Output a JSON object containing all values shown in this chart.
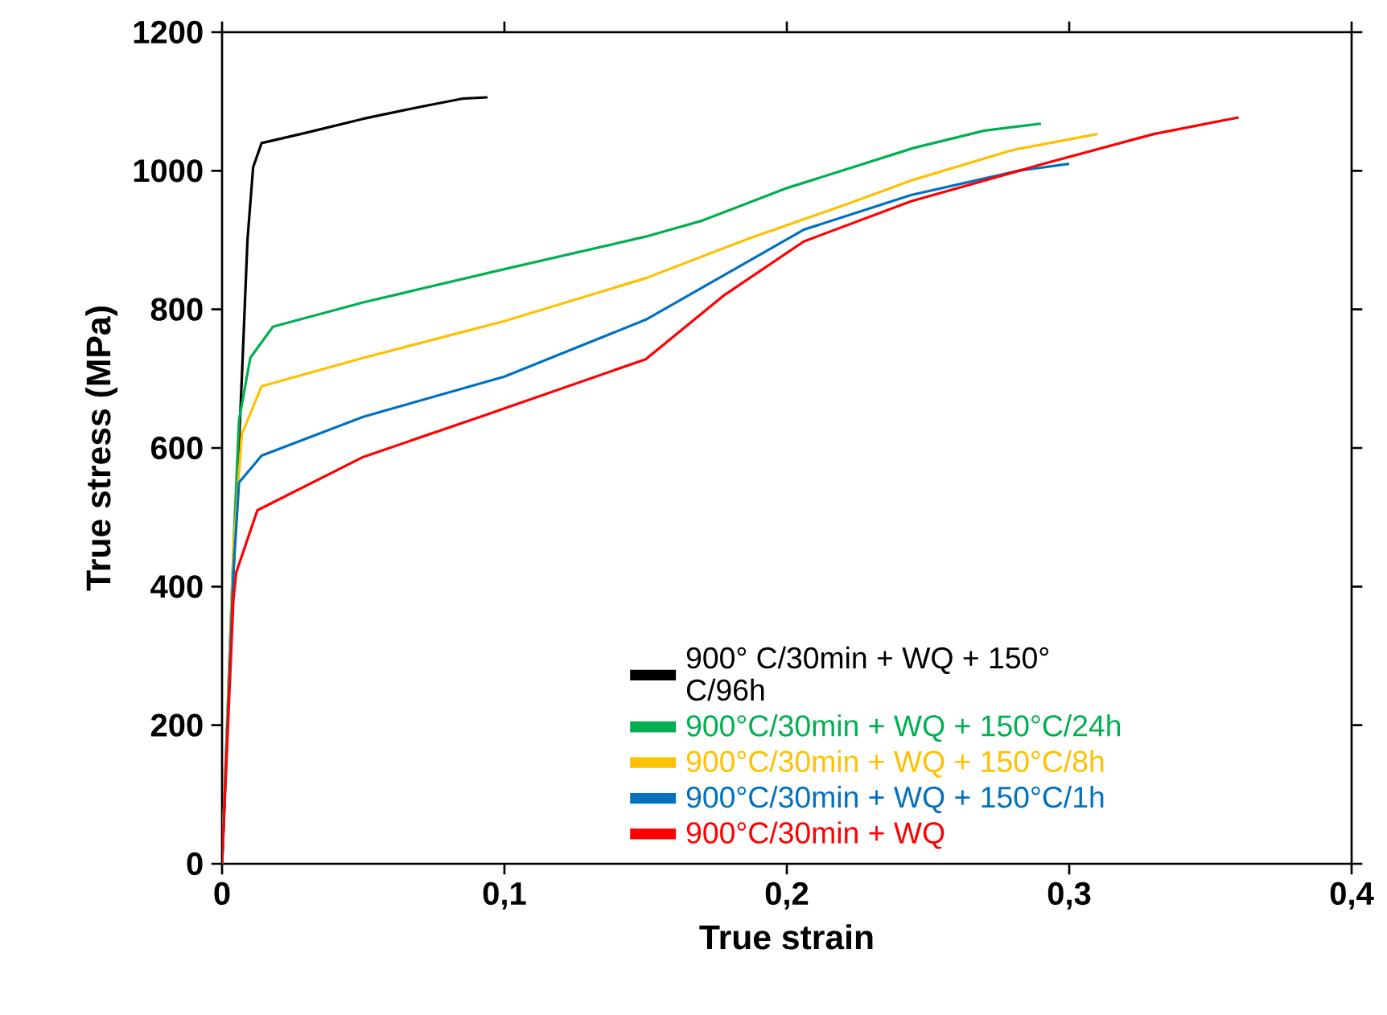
{
  "chart_data": {
    "type": "line",
    "xlabel": "True strain",
    "ylabel": "True stress (MPa)",
    "xlim": [
      0,
      0.4
    ],
    "ylim": [
      0,
      1200
    ],
    "xticks": [
      0,
      {
        "value": 0.1,
        "label": "0,1"
      },
      {
        "value": 0.2,
        "label": "0,2"
      },
      {
        "value": 0.3,
        "label": "0,3"
      },
      {
        "value": 0.4,
        "label": "0,4"
      }
    ],
    "yticks": [
      0,
      200,
      400,
      600,
      800,
      1000,
      1200
    ],
    "legend": "bottom right",
    "series": [
      {
        "name": "900° C/30min + WQ + 150° C/96h",
        "color": "#000000",
        "x": [
          0,
          0.004,
          0.007,
          0.009,
          0.011,
          0.014,
          0.03,
          0.05,
          0.07,
          0.085,
          0.094
        ],
        "values": [
          0,
          420,
          700,
          900,
          1005,
          1040,
          1055,
          1075,
          1092,
          1104,
          1106
        ]
      },
      {
        "name": "900°C/30min + WQ + 150°C/24h",
        "color": "#00b050",
        "x": [
          0,
          0.004,
          0.006,
          0.01,
          0.018,
          0.05,
          0.1,
          0.15,
          0.17,
          0.2,
          0.245,
          0.27,
          0.29
        ],
        "values": [
          0,
          450,
          640,
          730,
          775,
          810,
          858,
          905,
          928,
          975,
          1033,
          1058,
          1068
        ]
      },
      {
        "name": "900°C/30min + WQ + 150°C/8h",
        "color": "#ffc000",
        "x": [
          0,
          0.004,
          0.007,
          0.014,
          0.05,
          0.1,
          0.15,
          0.187,
          0.22,
          0.244,
          0.28,
          0.31
        ],
        "values": [
          0,
          450,
          620,
          689,
          730,
          783,
          845,
          903,
          950,
          986,
          1030,
          1053
        ]
      },
      {
        "name": "900°C/30min + WQ + 150°C/1h",
        "color": "#0070c0",
        "x": [
          0,
          0.004,
          0.006,
          0.014,
          0.05,
          0.1,
          0.15,
          0.178,
          0.206,
          0.244,
          0.282,
          0.3
        ],
        "values": [
          0,
          420,
          550,
          589,
          645,
          703,
          785,
          850,
          915,
          965,
          1000,
          1010
        ]
      },
      {
        "name": "900°C/30min + WQ",
        "color": "#ff0000",
        "x": [
          0,
          0.004,
          0.005,
          0.0125,
          0.05,
          0.095,
          0.15,
          0.178,
          0.206,
          0.244,
          0.29,
          0.33,
          0.36
        ],
        "values": [
          0,
          380,
          420,
          510,
          587,
          650,
          728,
          821,
          898,
          956,
          1009,
          1053,
          1077
        ]
      }
    ]
  }
}
